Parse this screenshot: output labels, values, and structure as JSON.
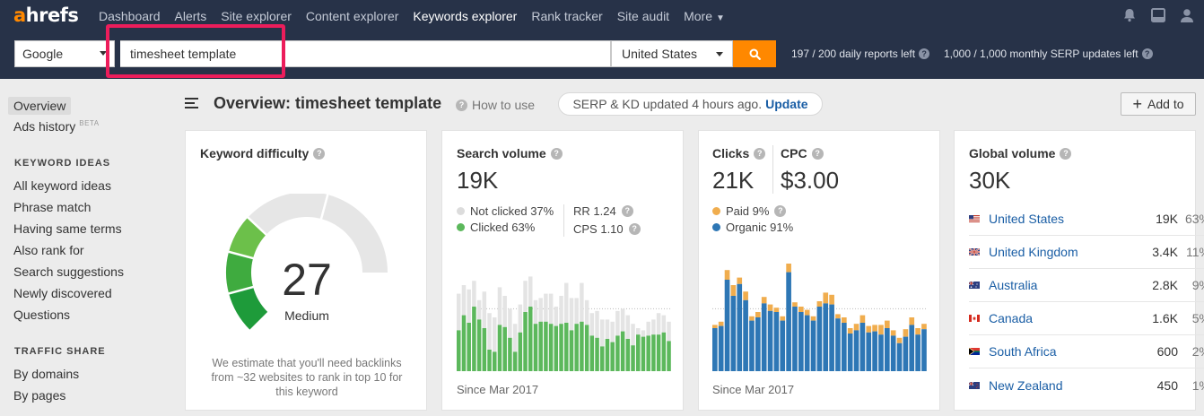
{
  "nav": {
    "logo_a": "a",
    "logo_rest": "hrefs",
    "links": [
      "Dashboard",
      "Alerts",
      "Site explorer",
      "Content explorer",
      "Keywords explorer",
      "Rank tracker",
      "Site audit"
    ],
    "more_label": "More",
    "active_index": 4
  },
  "search": {
    "engine": "Google",
    "keyword": "timesheet template",
    "country": "United States",
    "daily_reports": "197 / 200 daily reports left",
    "serp_updates": "1,000 / 1,000 monthly SERP updates left",
    "accent_color": "#ff8800",
    "highlight_color": "#ec1d5b"
  },
  "sidebar": {
    "overview": "Overview",
    "ads_history": "Ads history",
    "beta": "BETA",
    "keyword_ideas_heading": "KEYWORD IDEAS",
    "keyword_ideas": [
      "All keyword ideas",
      "Phrase match",
      "Having same terms",
      "Also rank for",
      "Search suggestions",
      "Newly discovered",
      "Questions"
    ],
    "traffic_share_heading": "TRAFFIC SHARE",
    "traffic_share": [
      "By domains",
      "By pages"
    ]
  },
  "header": {
    "title": "Overview: timesheet template",
    "how_to_use": "How to use",
    "serp_text": "SERP & KD updated 4 hours ago.",
    "update_link": "Update",
    "add_to": "Add to"
  },
  "kd": {
    "title": "Keyword difficulty",
    "value": "27",
    "label": "Medium",
    "score": 27,
    "note": "We estimate that you'll need backlinks from ~32 websites to rank in top 10 for this keyword"
  },
  "sv": {
    "title": "Search volume",
    "value": "19K",
    "not_clicked": "Not clicked 37%",
    "clicked": "Clicked 63%",
    "rr": "RR 1.24",
    "cps": "CPS 1.10",
    "since": "Since Mar 2017",
    "green": "#5cb85c",
    "grey": "#e4e4e4",
    "bars": [
      [
        0.72,
        0.38
      ],
      [
        0.8,
        0.52
      ],
      [
        0.76,
        0.45
      ],
      [
        0.84,
        0.6
      ],
      [
        0.66,
        0.48
      ],
      [
        0.74,
        0.4
      ],
      [
        0.54,
        0.2
      ],
      [
        0.5,
        0.18
      ],
      [
        0.78,
        0.43
      ],
      [
        0.7,
        0.41
      ],
      [
        0.58,
        0.31
      ],
      [
        0.44,
        0.18
      ],
      [
        0.62,
        0.36
      ],
      [
        0.84,
        0.55
      ],
      [
        0.88,
        0.6
      ],
      [
        0.66,
        0.44
      ],
      [
        0.68,
        0.46
      ],
      [
        0.72,
        0.46
      ],
      [
        0.72,
        0.44
      ],
      [
        0.6,
        0.42
      ],
      [
        0.7,
        0.44
      ],
      [
        0.82,
        0.45
      ],
      [
        0.68,
        0.38
      ],
      [
        0.68,
        0.44
      ],
      [
        0.82,
        0.46
      ],
      [
        0.66,
        0.43
      ],
      [
        0.54,
        0.33
      ],
      [
        0.56,
        0.31
      ],
      [
        0.48,
        0.23
      ],
      [
        0.48,
        0.3
      ],
      [
        0.46,
        0.27
      ],
      [
        0.56,
        0.33
      ],
      [
        0.58,
        0.37
      ],
      [
        0.52,
        0.3
      ],
      [
        0.44,
        0.24
      ],
      [
        0.4,
        0.34
      ],
      [
        0.38,
        0.32
      ],
      [
        0.46,
        0.33
      ],
      [
        0.48,
        0.34
      ],
      [
        0.54,
        0.34
      ],
      [
        0.52,
        0.36
      ],
      [
        0.46,
        0.28
      ]
    ]
  },
  "clicks": {
    "title": "Clicks",
    "value": "21K",
    "cpc_title": "CPC",
    "cpc_value": "$3.00",
    "paid": "Paid 9%",
    "organic": "Organic 91%",
    "since": "Since Mar 2017",
    "paid_color": "#f0ad4e",
    "organic_color": "#2e77b5",
    "bars": [
      [
        0.4,
        0.03
      ],
      [
        0.42,
        0.04
      ],
      [
        0.85,
        0.09
      ],
      [
        0.7,
        0.1
      ],
      [
        0.81,
        0.06
      ],
      [
        0.66,
        0.08
      ],
      [
        0.47,
        0.04
      ],
      [
        0.5,
        0.05
      ],
      [
        0.63,
        0.06
      ],
      [
        0.56,
        0.06
      ],
      [
        0.55,
        0.04
      ],
      [
        0.47,
        0.04
      ],
      [
        0.92,
        0.08
      ],
      [
        0.6,
        0.04
      ],
      [
        0.55,
        0.05
      ],
      [
        0.52,
        0.05
      ],
      [
        0.47,
        0.04
      ],
      [
        0.6,
        0.05
      ],
      [
        0.63,
        0.1
      ],
      [
        0.62,
        0.09
      ],
      [
        0.49,
        0.04
      ],
      [
        0.45,
        0.05
      ],
      [
        0.35,
        0.05
      ],
      [
        0.38,
        0.06
      ],
      [
        0.45,
        0.07
      ],
      [
        0.36,
        0.06
      ],
      [
        0.37,
        0.06
      ],
      [
        0.34,
        0.09
      ],
      [
        0.4,
        0.07
      ],
      [
        0.33,
        0.05
      ],
      [
        0.26,
        0.05
      ],
      [
        0.32,
        0.07
      ],
      [
        0.43,
        0.07
      ],
      [
        0.34,
        0.06
      ],
      [
        0.39,
        0.05
      ]
    ]
  },
  "gv": {
    "title": "Global volume",
    "value": "30K",
    "rows": [
      {
        "country": "United States",
        "volume": "19K",
        "pct": "63%",
        "flag": "us"
      },
      {
        "country": "United Kingdom",
        "volume": "3.4K",
        "pct": "11%",
        "flag": "gb"
      },
      {
        "country": "Australia",
        "volume": "2.8K",
        "pct": "9%",
        "flag": "au"
      },
      {
        "country": "Canada",
        "volume": "1.6K",
        "pct": "5%",
        "flag": "ca"
      },
      {
        "country": "South Africa",
        "volume": "600",
        "pct": "2%",
        "flag": "za"
      },
      {
        "country": "New Zealand",
        "volume": "450",
        "pct": "1%",
        "flag": "nz"
      }
    ]
  }
}
